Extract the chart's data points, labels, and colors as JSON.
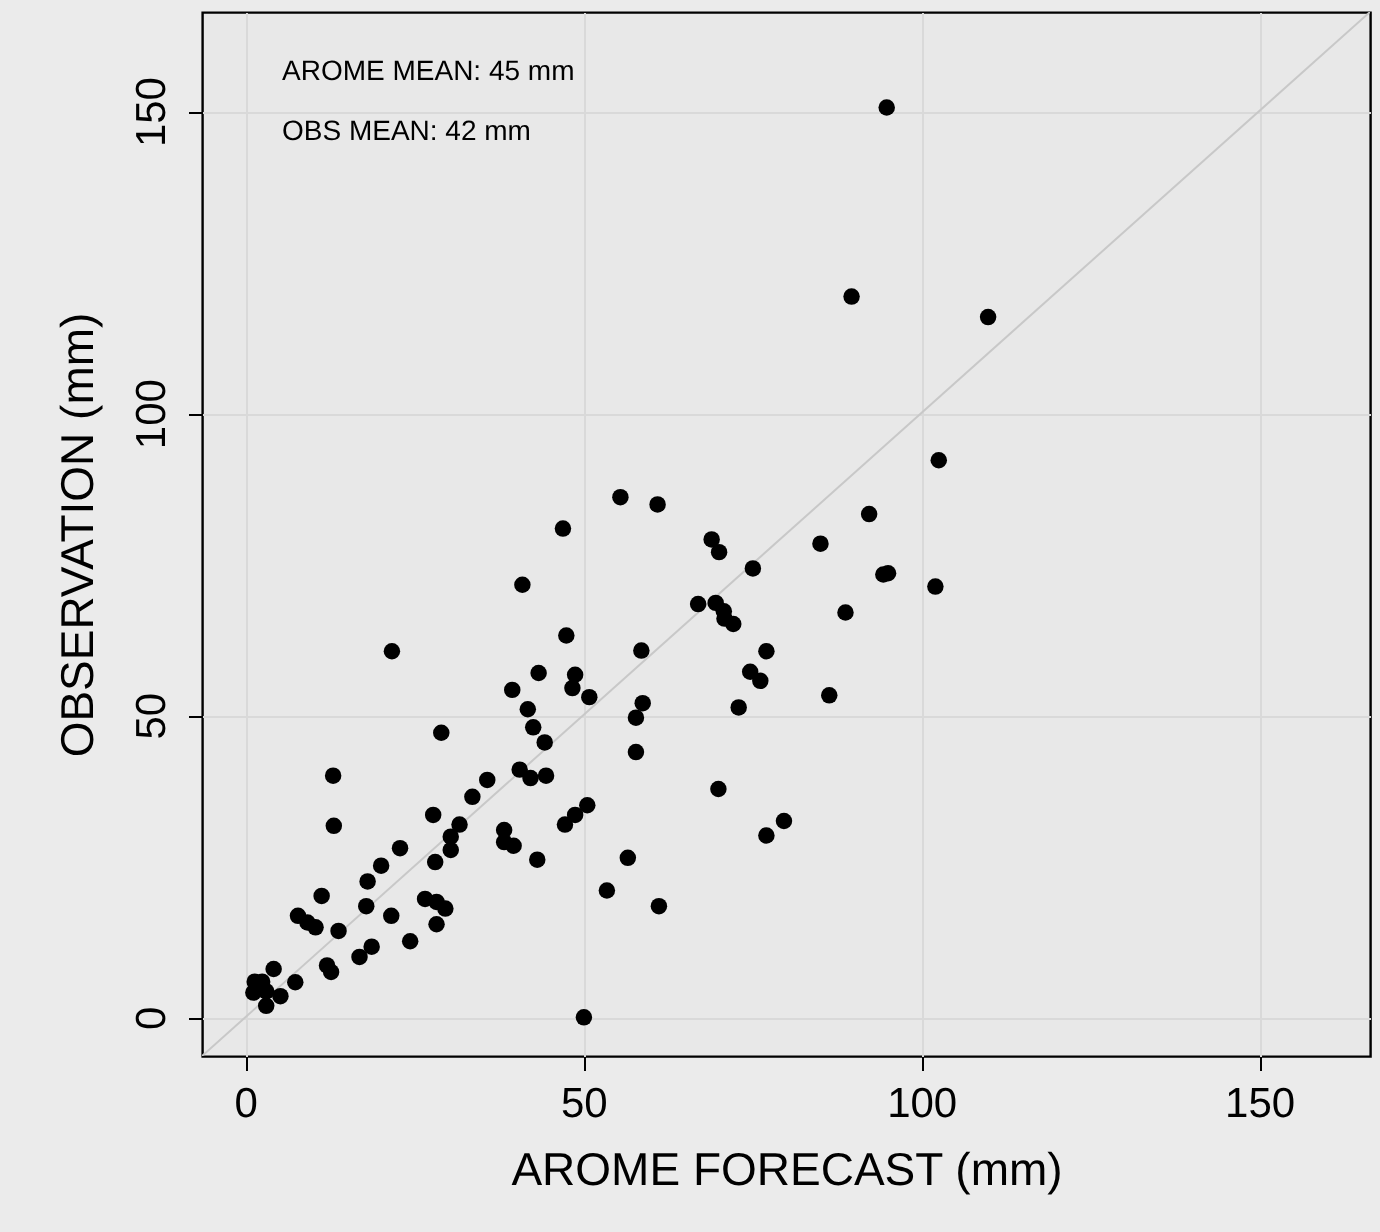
{
  "chart_data": {
    "type": "scatter",
    "xlabel": "AROME FORECAST (mm)",
    "ylabel": "OBSERVATION (mm)",
    "annotations": [
      "AROME MEAN: 45 mm",
      "OBS MEAN: 42 mm"
    ],
    "xlim": [
      -6.4,
      166.4
    ],
    "ylim": [
      -6.4,
      166.4
    ],
    "xticks": [
      0,
      50,
      100,
      150
    ],
    "yticks": [
      0,
      50,
      100,
      150
    ],
    "grid": true,
    "series": [
      {
        "type": "line",
        "color": "#c8c8c8",
        "x": [
          -6.4,
          166.4
        ],
        "values": [
          -6.4,
          166.4
        ]
      },
      {
        "color": "#000000",
        "marker": "circle",
        "x": [
          94.9,
          89.7,
          109.9,
          102.6,
          92.3,
          85.1,
          94.4,
          95.1,
          102.1,
          88.8,
          86.4,
          55.5,
          61.0,
          47.0,
          69.0,
          70.1,
          75.1,
          41.0,
          67.0,
          69.6,
          70.8,
          70.9,
          72.2,
          21.7,
          47.5,
          58.6,
          77.1,
          43.4,
          48.8,
          74.7,
          76.2,
          39.5,
          48.4,
          50.9,
          58.8,
          41.8,
          73.0,
          57.8,
          42.6,
          29.0,
          44.3,
          57.8,
          13.0,
          35.8,
          40.6,
          42.2,
          44.5,
          70.0,
          33.6,
          50.6,
          48.8,
          47.3,
          27.8,
          31.7,
          13.1,
          38.3,
          30.4,
          79.7,
          77.1,
          38.3,
          39.7,
          30.4,
          22.9,
          28.1,
          43.2,
          56.6,
          20.1,
          18.1,
          53.5,
          11.3,
          26.6,
          28.3,
          29.6,
          17.9,
          61.2,
          21.6,
          7.8,
          9.2,
          10.4,
          13.8,
          28.3,
          24.4,
          18.7,
          16.9,
          12.1,
          12.7,
          4.2,
          7.4,
          1.4,
          2.5,
          1.2,
          3.1,
          5.2,
          3.1,
          50.1
        ],
        "values": [
          150.6,
          119.3,
          115.9,
          92.2,
          83.3,
          78.4,
          73.3,
          73.5,
          71.3,
          67.0,
          53.3,
          86.1,
          84.9,
          80.9,
          79.1,
          77.0,
          74.3,
          71.6,
          68.4,
          68.6,
          67.2,
          66.0,
          65.1,
          60.6,
          63.2,
          60.7,
          60.6,
          57.0,
          56.7,
          57.2,
          55.7,
          54.2,
          54.5,
          53.0,
          52.0,
          51.0,
          51.3,
          49.6,
          48.0,
          47.1,
          45.5,
          43.9,
          40.0,
          39.3,
          41.0,
          39.6,
          40.0,
          37.8,
          36.5,
          35.1,
          33.5,
          31.9,
          33.5,
          31.9,
          31.7,
          31.0,
          29.9,
          32.5,
          30.1,
          29.0,
          28.4,
          27.7,
          28.0,
          25.7,
          26.1,
          26.4,
          25.1,
          22.5,
          21.0,
          20.1,
          19.6,
          19.1,
          18.0,
          18.4,
          18.4,
          16.8,
          16.8,
          15.7,
          14.9,
          14.3,
          15.4,
          12.6,
          11.7,
          10.0,
          8.6,
          7.5,
          8.0,
          5.8,
          5.9,
          5.9,
          4.1,
          4.3,
          3.5,
          1.9,
          0.0
        ]
      }
    ]
  }
}
